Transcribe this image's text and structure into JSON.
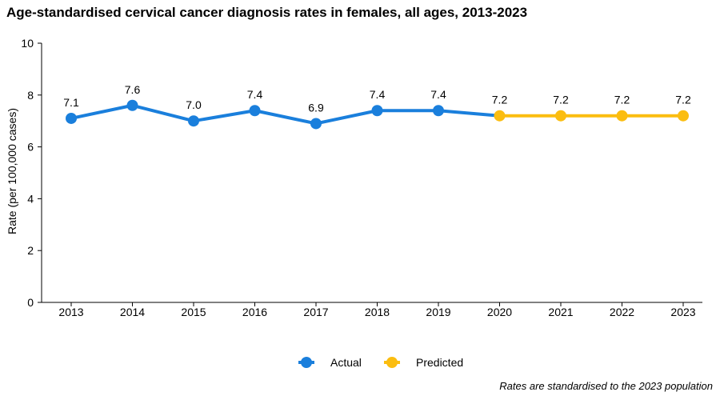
{
  "chart": {
    "title": "Age-standardised cervical cancer diagnosis rates in females, all ages, 2013-2023",
    "footnote": "Rates are standardised to the 2023 population"
  },
  "chart_data": {
    "type": "line",
    "title": "Age-standardised cervical cancer diagnosis rates in females, all ages, 2013-2023",
    "xlabel": "",
    "ylabel": "Rate (per 100,000 cases)",
    "ylim": [
      0,
      10
    ],
    "yticks": [
      0,
      2,
      4,
      6,
      8,
      10
    ],
    "categories": [
      "2013",
      "2014",
      "2015",
      "2016",
      "2017",
      "2018",
      "2019",
      "2020",
      "2021",
      "2022",
      "2023"
    ],
    "grid": false,
    "legend_position": "bottom",
    "series": [
      {
        "name": "Actual",
        "color": "#1a7fdc",
        "x": [
          "2013",
          "2014",
          "2015",
          "2016",
          "2017",
          "2018",
          "2019",
          "2020"
        ],
        "values": [
          7.1,
          7.6,
          7.0,
          7.4,
          6.9,
          7.4,
          7.4,
          7.2
        ],
        "labels": [
          "7.1",
          "7.6",
          "7.0",
          "7.4",
          "6.9",
          "7.4",
          "7.4",
          null
        ],
        "show_markers": [
          true,
          true,
          true,
          true,
          true,
          true,
          true,
          false
        ]
      },
      {
        "name": "Predicted",
        "color": "#fbbd10",
        "x": [
          "2020",
          "2021",
          "2022",
          "2023"
        ],
        "values": [
          7.2,
          7.2,
          7.2,
          7.2
        ],
        "labels": [
          "7.2",
          "7.2",
          "7.2",
          "7.2"
        ],
        "show_markers": [
          true,
          true,
          true,
          true
        ]
      }
    ],
    "footnote": "Rates are standardised to the 2023 population"
  }
}
